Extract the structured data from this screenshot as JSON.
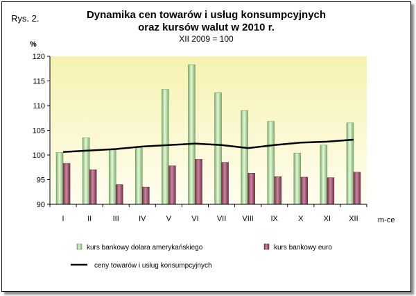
{
  "figure_label": "Rys. 2.",
  "title_line1": "Dynamika cen towarów i usług konsumpcyjnych",
  "title_line2": "oraz kursów walut w 2010 r.",
  "subtitle": "XII 2009 = 100",
  "colors": {
    "usd": "#b8e0a8",
    "eur": "#9c4a66",
    "cpi": "#000000",
    "plot_bg_top": "#f8f4b8",
    "plot_bg_bottom": "#fffde8"
  },
  "chart_data": {
    "type": "bar",
    "categories": [
      "I",
      "II",
      "III",
      "IV",
      "V",
      "VI",
      "VII",
      "VIII",
      "IX",
      "X",
      "XI",
      "XII"
    ],
    "ylabel": "%",
    "xlabel": "m-ce",
    "ylim": [
      90,
      120
    ],
    "yticks": [
      90,
      95,
      100,
      105,
      110,
      115,
      120
    ],
    "grid": false,
    "legend_position": "bottom",
    "series": [
      {
        "name": "kurs bankowy dolara amerykańskiego",
        "type": "bar",
        "color": "#b8e0a8",
        "values": [
          100.5,
          103.5,
          101.0,
          101.5,
          113.3,
          118.3,
          112.6,
          109.0,
          106.8,
          100.4,
          102.0,
          106.5
        ]
      },
      {
        "name": "kurs bankowy euro",
        "type": "bar",
        "color": "#9c4a66",
        "values": [
          98.3,
          97.0,
          94.0,
          93.5,
          97.8,
          99.1,
          98.5,
          96.3,
          95.6,
          95.5,
          95.4,
          96.5
        ]
      },
      {
        "name": "ceny towarów i usług konsumpcyjnych",
        "type": "line",
        "color": "#000000",
        "values": [
          100.6,
          100.9,
          101.2,
          101.7,
          102.0,
          102.3,
          102.0,
          101.4,
          102.0,
          102.5,
          102.7,
          103.1
        ]
      }
    ]
  }
}
